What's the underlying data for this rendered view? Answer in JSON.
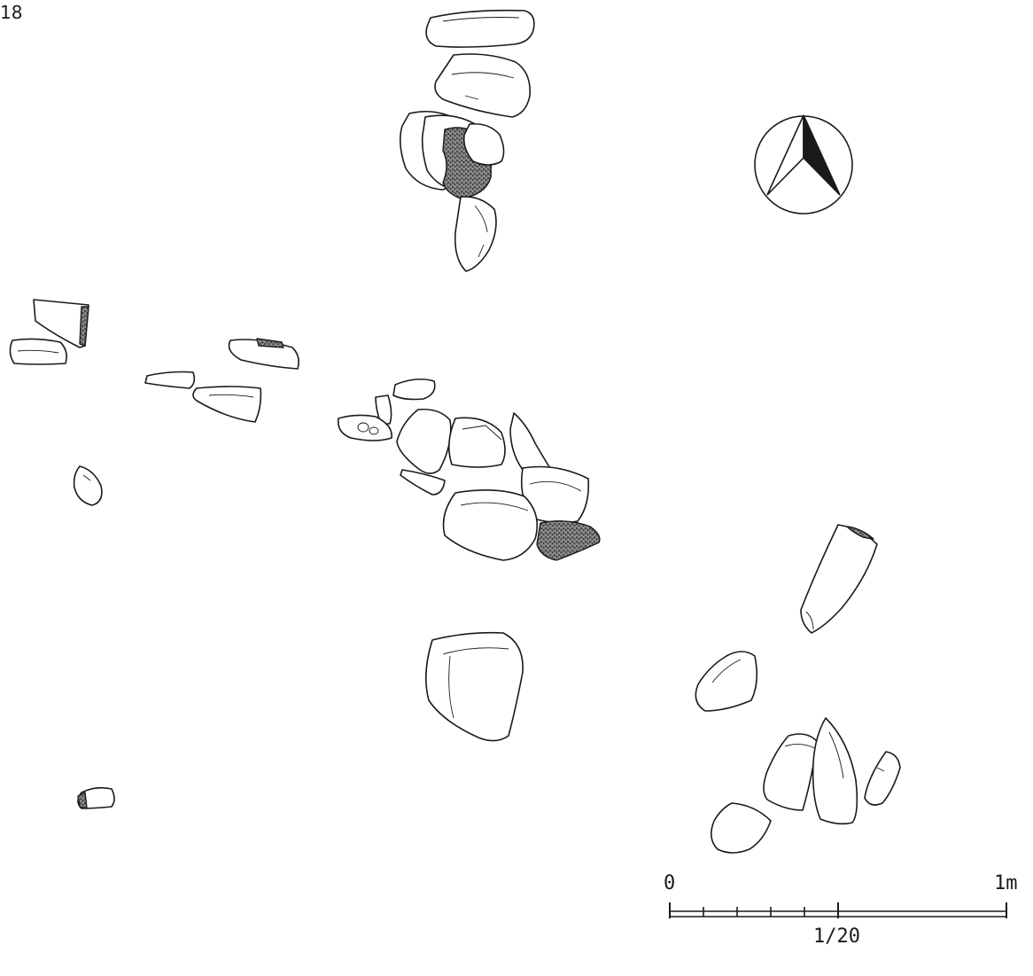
{
  "figure": {
    "number": "18"
  },
  "scale_bar": {
    "zero_label": "0",
    "end_label": "1m",
    "ratio_label": "1/20"
  },
  "north_arrow": {
    "icon": "north-arrow-icon"
  },
  "colors": {
    "ink": "#1a1a1a",
    "paper": "#ffffff"
  }
}
